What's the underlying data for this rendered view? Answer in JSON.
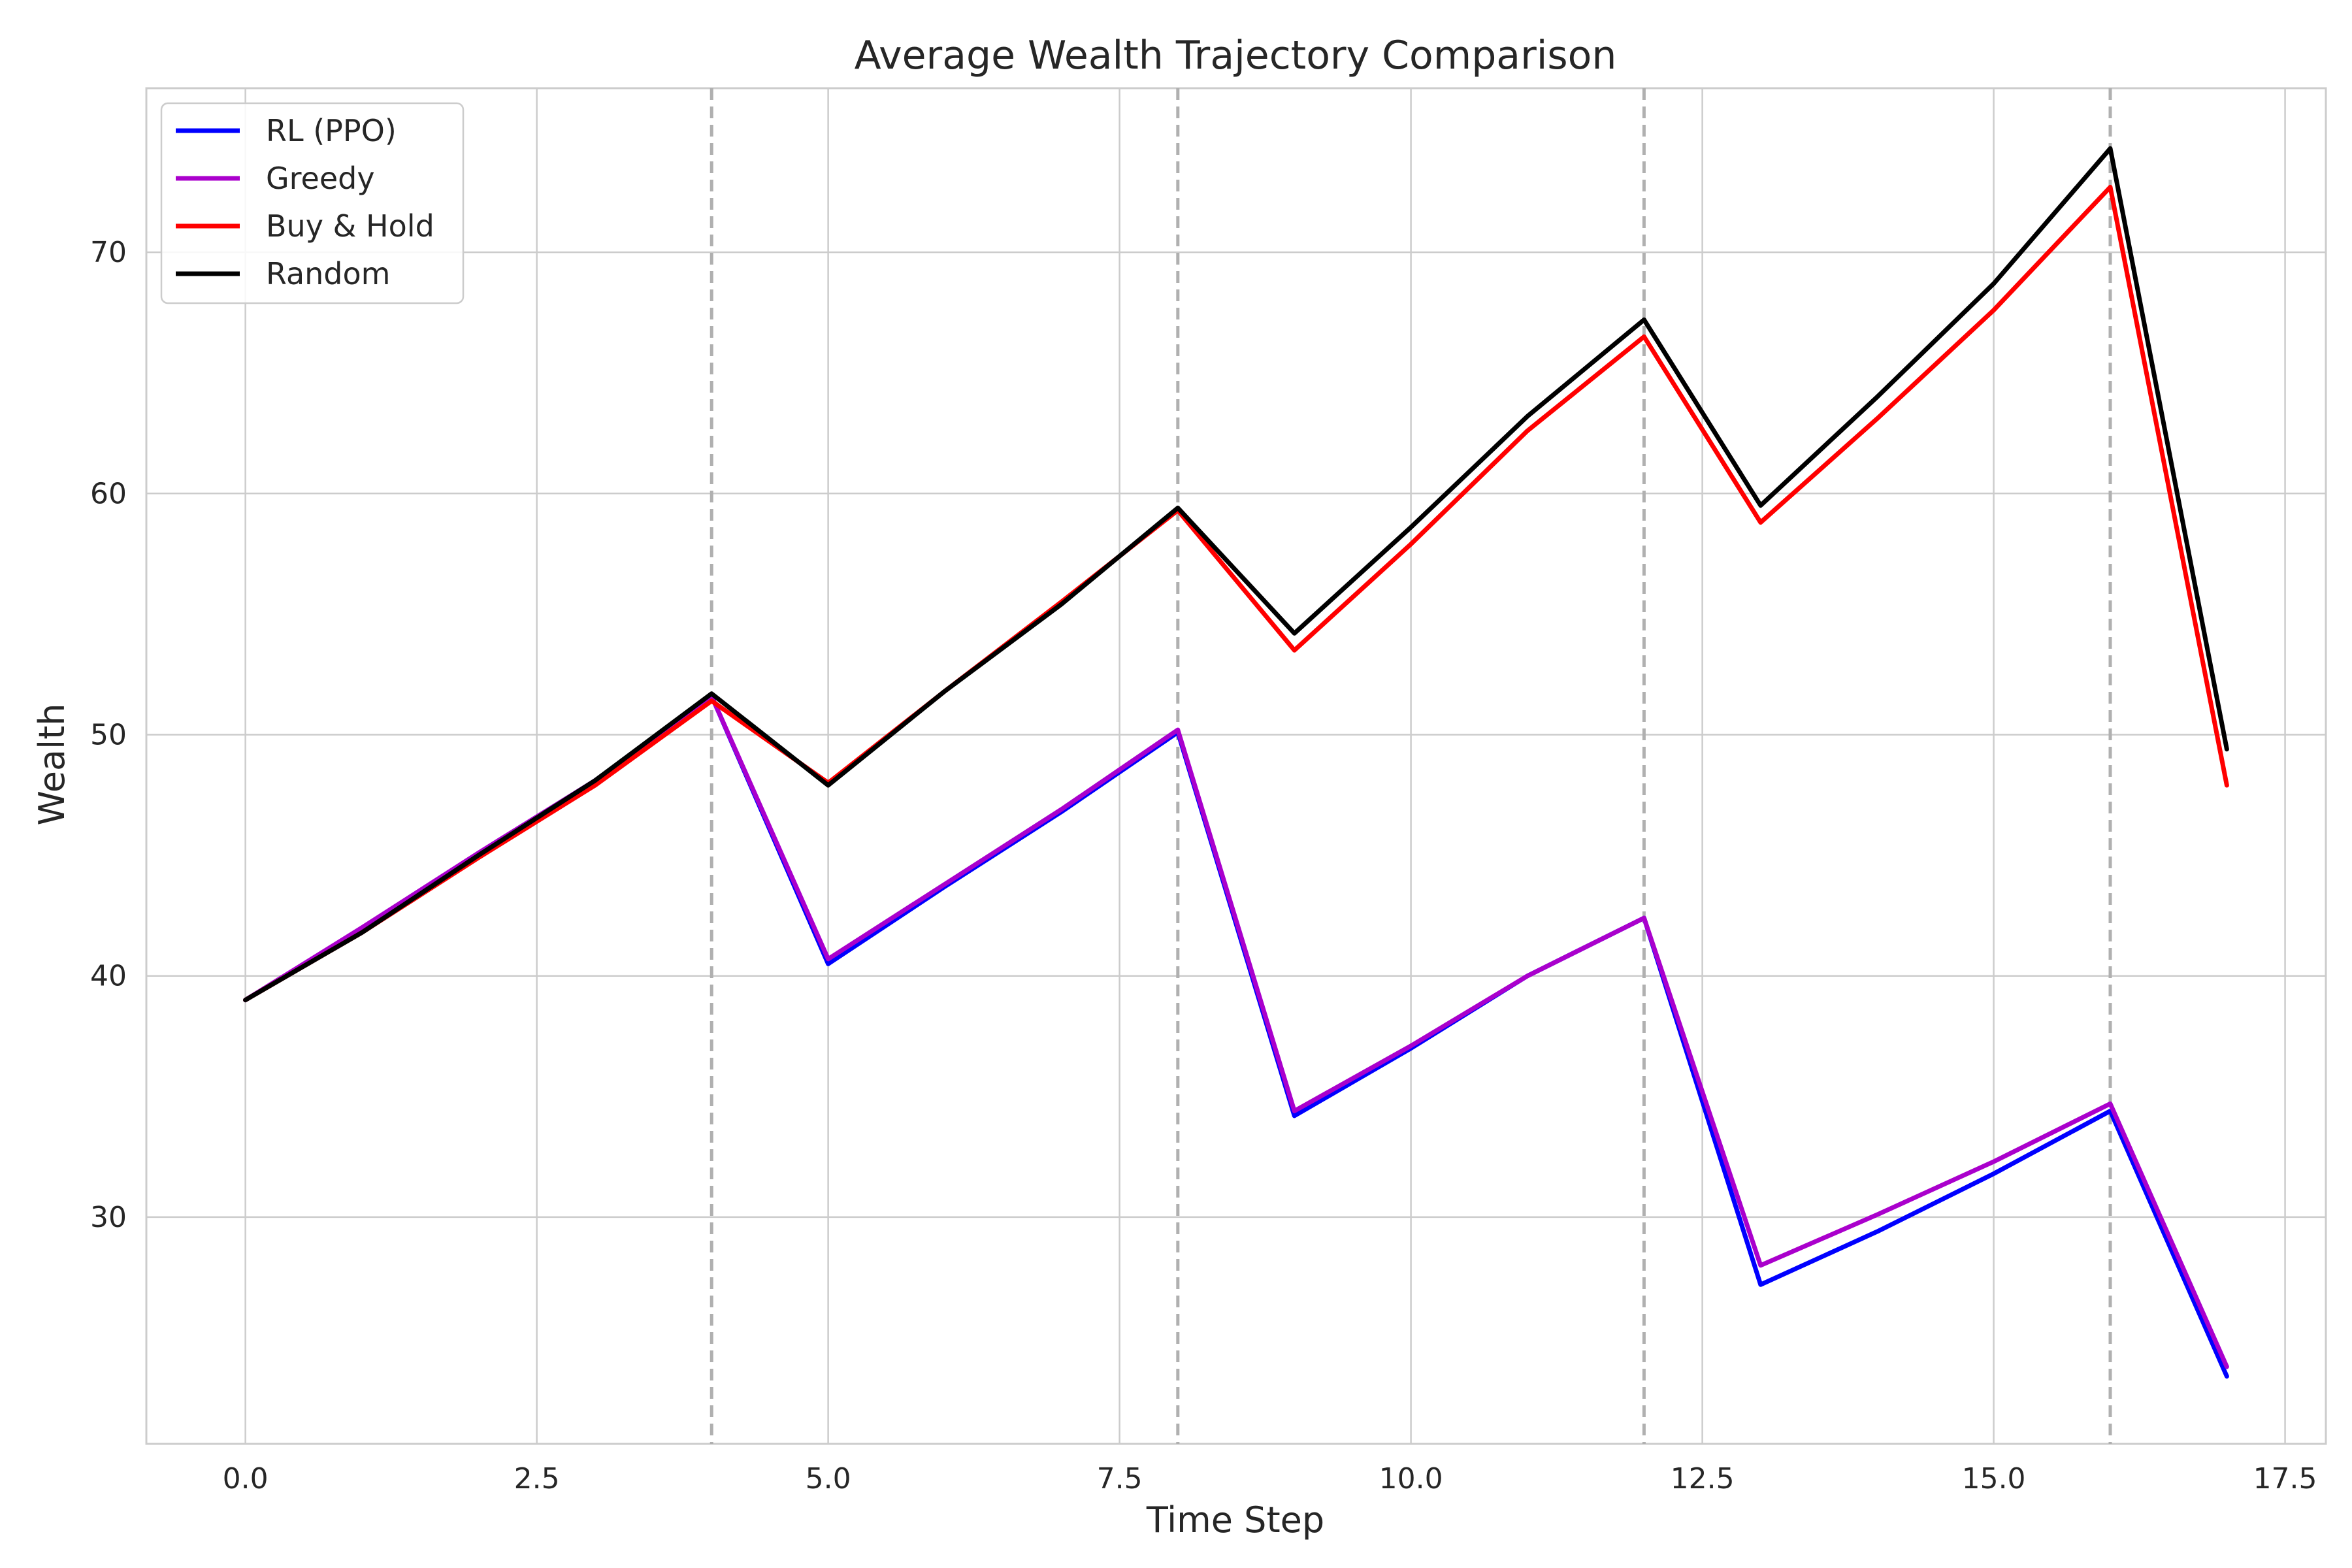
{
  "chart_data": {
    "type": "line",
    "title": "Average Wealth Trajectory Comparison",
    "xlabel": "Time Step",
    "ylabel": "Wealth",
    "xlim": [
      -0.85,
      17.85
    ],
    "ylim": [
      20.6,
      76.8
    ],
    "xticks": [
      0.0,
      2.5,
      5.0,
      7.5,
      10.0,
      12.5,
      15.0,
      17.5
    ],
    "xtick_labels": [
      "0.0",
      "2.5",
      "5.0",
      "7.5",
      "10.0",
      "12.5",
      "15.0",
      "17.5"
    ],
    "yticks": [
      30,
      40,
      50,
      60,
      70
    ],
    "ytick_labels": [
      "30",
      "40",
      "50",
      "60",
      "70"
    ],
    "grid": true,
    "vertical_reference_lines": [
      4,
      8,
      12,
      16
    ],
    "legend_position": "upper-left",
    "x": [
      0,
      1,
      2,
      3,
      4,
      5,
      6,
      7,
      8,
      9,
      10,
      11,
      12,
      13,
      14,
      15,
      16,
      17
    ],
    "series": [
      {
        "name": "RL (PPO)",
        "color": "#0000ff",
        "values": [
          39.0,
          41.9,
          45.0,
          48.1,
          51.6,
          40.5,
          43.7,
          46.8,
          50.1,
          34.2,
          37.0,
          40.0,
          42.4,
          27.2,
          29.4,
          31.8,
          34.4,
          23.4
        ]
      },
      {
        "name": "Greedy",
        "color": "#aa00cc",
        "values": [
          39.0,
          42.0,
          45.1,
          48.1,
          51.6,
          40.7,
          43.8,
          46.9,
          50.2,
          34.4,
          37.1,
          40.0,
          42.4,
          28.0,
          30.1,
          32.3,
          34.7,
          23.8
        ]
      },
      {
        "name": "Buy & Hold",
        "color": "#ff0000",
        "values": [
          39.0,
          41.8,
          44.9,
          47.9,
          51.4,
          48.0,
          51.8,
          55.5,
          59.3,
          53.5,
          57.9,
          62.6,
          66.5,
          58.8,
          63.1,
          67.6,
          72.7,
          47.9
        ]
      },
      {
        "name": "Random",
        "color": "#000000",
        "values": [
          39.0,
          41.8,
          45.0,
          48.1,
          51.7,
          47.9,
          51.8,
          55.4,
          59.4,
          54.2,
          58.6,
          63.2,
          67.2,
          59.5,
          64.0,
          68.7,
          74.3,
          49.4
        ]
      }
    ]
  }
}
